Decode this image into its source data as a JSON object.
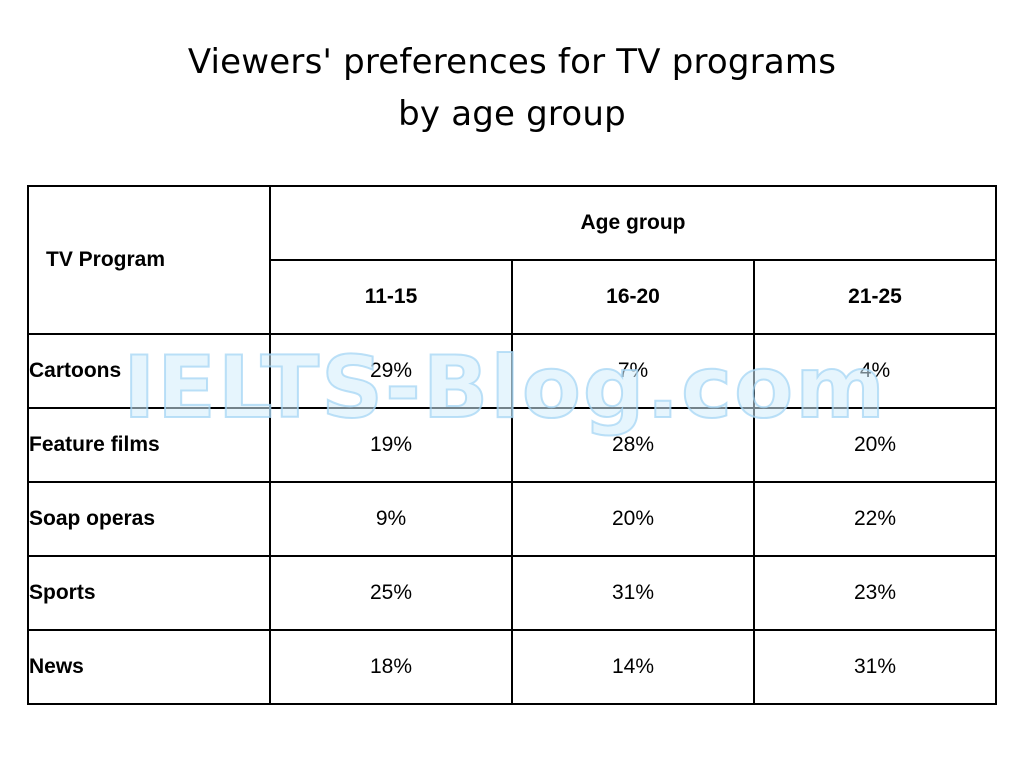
{
  "title_line1": "Viewers' preferences for TV programs",
  "title_line2": "by age group",
  "watermark": "IELTS-Blog.com",
  "chart_data": {
    "type": "table",
    "title": "Viewers' preferences for TV programs by age group",
    "row_header": "TV Program",
    "column_group": "Age group",
    "columns": [
      "11-15",
      "16-20",
      "21-25"
    ],
    "rows": [
      {
        "label": "Cartoons",
        "values": [
          "29%",
          "7%",
          "4%"
        ]
      },
      {
        "label": "Feature films",
        "values": [
          "19%",
          "28%",
          "20%"
        ]
      },
      {
        "label": "Soap operas",
        "values": [
          "9%",
          "20%",
          "22%"
        ]
      },
      {
        "label": "Sports",
        "values": [
          "25%",
          "31%",
          "23%"
        ]
      },
      {
        "label": "News",
        "values": [
          "18%",
          "14%",
          "31%"
        ]
      }
    ]
  }
}
